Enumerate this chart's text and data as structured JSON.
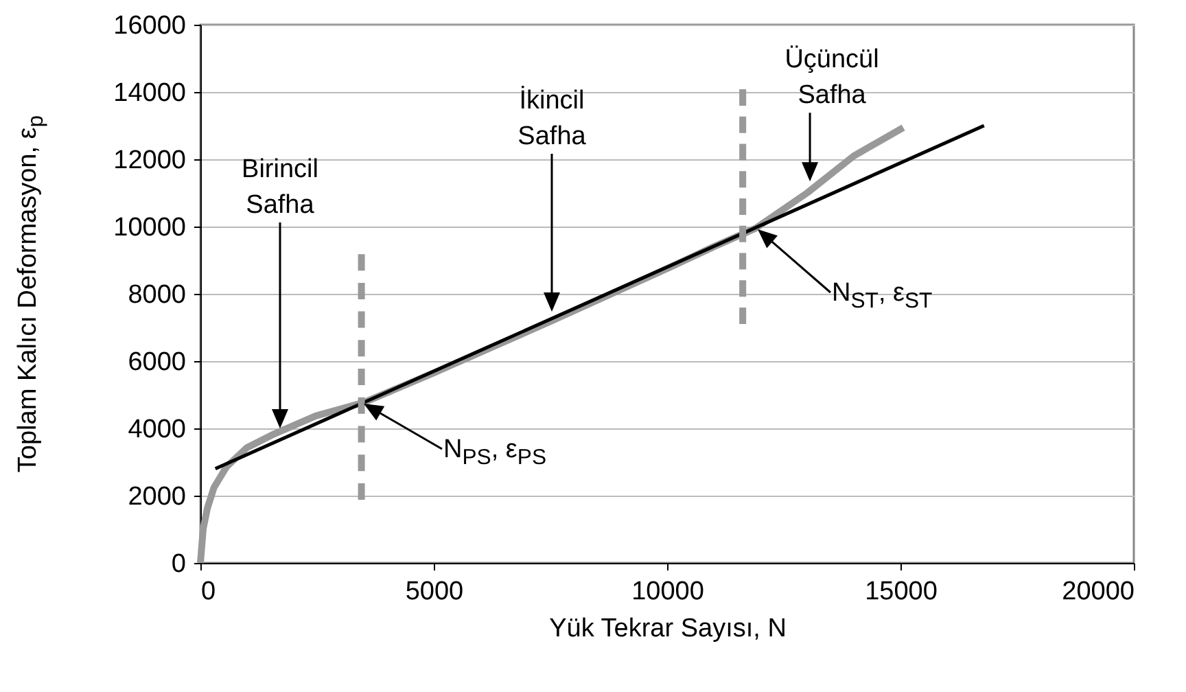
{
  "chart_data": {
    "type": "line",
    "xlabel": "Yük Tekrar Sayısı, N",
    "ylabel": "Toplam Kalıcı Deformasyon, ε$_{p}$",
    "xlim": [
      0,
      20000
    ],
    "ylim": [
      0,
      16000
    ],
    "xticks": [
      0,
      5000,
      10000,
      15000,
      20000
    ],
    "yticks": [
      0,
      2000,
      4000,
      6000,
      8000,
      10000,
      12000,
      14000,
      16000
    ],
    "grid": "y",
    "series": [
      {
        "type": "line",
        "color": "#999999",
        "x": [
          0,
          60,
          150,
          290,
          560,
          1000,
          1590,
          2470,
          3500,
          5000,
          7500,
          10000,
          11000,
          11900,
          13000,
          14000,
          15060
        ],
        "values": [
          0,
          1020,
          1630,
          2240,
          2860,
          3430,
          3840,
          4370,
          4770,
          5650,
          7180,
          8750,
          9400,
          9950,
          11000,
          12100,
          12940
        ]
      },
      {
        "type": "line",
        "color": "#000000",
        "x": [
          320,
          16790
        ],
        "values": [
          2800,
          13000
        ]
      },
      {
        "type": "line",
        "color": "#999999",
        "line_style": "dashed",
        "x": [
          3450,
          3450
        ],
        "values": [
          1880,
          9180
        ]
      },
      {
        "type": "line",
        "color": "#999999",
        "line_style": "dashed",
        "x": [
          11620,
          11620
        ],
        "values": [
          7100,
          14080
        ]
      }
    ],
    "annotations": [
      "Birincil\nSafha",
      "İkincil\nSafha",
      {
        "text": "Üçüncül\nSafha",
        "x": 13060,
        "y": 11340
      },
      "N$_{PS}$, ε$_{PS}$",
      "N$_{ST}$, ε$_{ST}$"
    ]
  }
}
